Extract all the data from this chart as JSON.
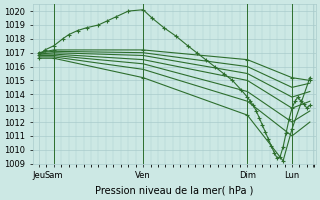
{
  "xlabel": "Pression niveau de la mer( hPa )",
  "bg_color": "#cce8e4",
  "grid_color": "#aacccc",
  "line_color": "#2d6e2d",
  "ylim": [
    1009,
    1020.5
  ],
  "yticks": [
    1009,
    1010,
    1011,
    1012,
    1013,
    1014,
    1015,
    1016,
    1017,
    1018,
    1019,
    1020
  ],
  "xlim": [
    -0.2,
    9.3
  ],
  "vline_positions": [
    0.5,
    3.5,
    7.0,
    8.5
  ],
  "xtick_positions": [
    0.0,
    0.5,
    3.5,
    7.0,
    8.5,
    9.2
  ],
  "xtick_labels": [
    "Jeu",
    "Sam",
    "Ven",
    "Dim",
    "Lun",
    ""
  ],
  "series": [
    {
      "x": [
        0.0,
        0.2,
        0.5,
        0.8,
        1.0,
        1.3,
        1.6,
        2.0,
        2.3,
        2.6,
        3.0,
        3.5,
        3.8,
        4.2,
        4.6,
        5.0,
        5.3,
        5.6,
        5.9,
        6.2,
        6.5,
        6.8,
        7.0,
        7.1,
        7.2,
        7.3,
        7.4,
        7.5,
        7.6,
        7.7,
        7.8,
        7.9,
        8.0,
        8.1,
        8.2,
        8.3,
        8.4,
        8.5,
        8.6,
        8.7,
        8.8,
        8.9,
        9.0,
        9.1
      ],
      "y": [
        1016.8,
        1017.2,
        1017.5,
        1018.0,
        1018.3,
        1018.6,
        1018.8,
        1019.0,
        1019.3,
        1019.6,
        1020.0,
        1020.1,
        1019.5,
        1018.8,
        1018.2,
        1017.5,
        1017.0,
        1016.5,
        1016.0,
        1015.5,
        1015.0,
        1014.3,
        1013.8,
        1013.5,
        1013.2,
        1012.8,
        1012.3,
        1011.8,
        1011.3,
        1010.8,
        1010.3,
        1009.8,
        1009.4,
        1009.5,
        1010.2,
        1011.2,
        1012.2,
        1013.0,
        1013.5,
        1013.8,
        1013.5,
        1013.3,
        1013.0,
        1013.2
      ],
      "marker": "+"
    },
    {
      "x": [
        0.0,
        0.5,
        3.5,
        7.0,
        8.5,
        9.1
      ],
      "y": [
        1017.0,
        1017.2,
        1017.2,
        1016.5,
        1015.2,
        1015.0
      ],
      "marker": "+"
    },
    {
      "x": [
        0.0,
        0.5,
        3.5,
        7.0,
        8.5,
        9.1
      ],
      "y": [
        1017.0,
        1017.1,
        1017.0,
        1016.0,
        1014.5,
        1014.8
      ],
      "marker": null
    },
    {
      "x": [
        0.0,
        0.5,
        3.5,
        7.0,
        8.5,
        9.1
      ],
      "y": [
        1016.9,
        1017.0,
        1016.8,
        1015.5,
        1013.8,
        1014.2
      ],
      "marker": null
    },
    {
      "x": [
        0.0,
        0.5,
        3.5,
        7.0,
        8.5,
        9.1
      ],
      "y": [
        1016.9,
        1016.9,
        1016.5,
        1015.0,
        1013.0,
        1013.5
      ],
      "marker": null
    },
    {
      "x": [
        0.0,
        0.5,
        3.5,
        7.0,
        8.5,
        9.1
      ],
      "y": [
        1016.8,
        1016.8,
        1016.2,
        1014.2,
        1012.0,
        1012.8
      ],
      "marker": null
    },
    {
      "x": [
        0.0,
        0.5,
        3.5,
        7.0,
        8.5,
        9.1
      ],
      "y": [
        1016.7,
        1016.7,
        1015.8,
        1013.5,
        1011.0,
        1012.0
      ],
      "marker": null
    },
    {
      "x": [
        0.0,
        0.5,
        3.5,
        7.0,
        8.2,
        8.5,
        9.1
      ],
      "y": [
        1016.6,
        1016.6,
        1015.2,
        1012.5,
        1009.2,
        1011.5,
        1015.2
      ],
      "marker": "+"
    }
  ]
}
